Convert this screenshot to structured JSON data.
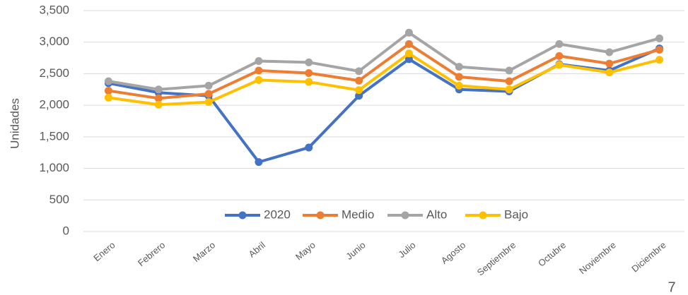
{
  "chart_data": {
    "type": "line",
    "y_label": "Unidades",
    "categories": [
      "Enero",
      "Febrero",
      "Marzo",
      "Abril",
      "Mayo",
      "Junio",
      "Julio",
      "Agosto",
      "Septiembre",
      "Octubre",
      "Noviembre",
      "Diciembre"
    ],
    "series": [
      {
        "name": "2020",
        "color": "#4472c4",
        "values": [
          2350,
          2200,
          2150,
          1100,
          1330,
          2150,
          2730,
          2250,
          2220,
          2650,
          2550,
          2900
        ]
      },
      {
        "name": "Medio",
        "color": "#ed7d31",
        "values": [
          2230,
          2110,
          2180,
          2550,
          2510,
          2390,
          2970,
          2450,
          2380,
          2780,
          2660,
          2880
        ]
      },
      {
        "name": "Alto",
        "color": "#a5a5a5",
        "values": [
          2380,
          2250,
          2310,
          2700,
          2680,
          2540,
          3150,
          2610,
          2550,
          2970,
          2840,
          3060
        ]
      },
      {
        "name": "Bajo",
        "color": "#ffc000",
        "values": [
          2120,
          2010,
          2050,
          2400,
          2370,
          2240,
          2820,
          2310,
          2250,
          2640,
          2520,
          2720
        ]
      }
    ],
    "ylim": [
      0,
      3500
    ],
    "yticks": [
      0,
      500,
      {
        "value": 1000,
        "label": "1,000"
      },
      {
        "value": 1500,
        "label": "1,500"
      },
      {
        "value": 2000,
        "label": "2,000"
      },
      {
        "value": 2500,
        "label": "2,500"
      },
      {
        "value": 3000,
        "label": "3,000"
      },
      {
        "value": 3500,
        "label": "3,500"
      }
    ],
    "grid": true,
    "legend": "bottom"
  },
  "page_number": "7"
}
